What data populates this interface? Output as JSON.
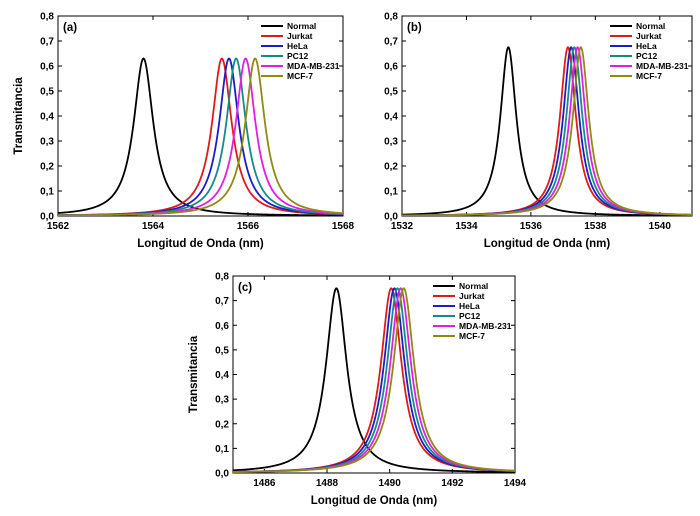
{
  "colors": {
    "Normal": "#000000",
    "Jurkat": "#e01a1a",
    "HeLa": "#1c1cc8",
    "PC12": "#168a8a",
    "MDA-MB-231": "#e21ee2",
    "MCF-7": "#8f8a12"
  },
  "chart_data": [
    {
      "type": "line",
      "panel_label": "(a)",
      "xlabel": "Longitud de Onda (nm)",
      "ylabel": "Transmitancia",
      "xlim": [
        1562,
        1568
      ],
      "ylim": [
        0,
        0.8
      ],
      "xticks": [
        "1562",
        "1564",
        "1566",
        "1568"
      ],
      "yticks": [
        "0,0",
        "0,1",
        "0,2",
        "0,3",
        "0,4",
        "0,5",
        "0,6",
        "0,7",
        "0,8"
      ],
      "legend_position": "top-right",
      "grid": false,
      "series": [
        {
          "name": "Normal",
          "x0": 1563.8,
          "peak": 0.63,
          "fwhm": 0.5
        },
        {
          "name": "Jurkat",
          "x0": 1565.45,
          "peak": 0.63,
          "fwhm": 0.5
        },
        {
          "name": "HeLa",
          "x0": 1565.6,
          "peak": 0.63,
          "fwhm": 0.5
        },
        {
          "name": "PC12",
          "x0": 1565.75,
          "peak": 0.63,
          "fwhm": 0.5
        },
        {
          "name": "MDA-MB-231",
          "x0": 1565.95,
          "peak": 0.63,
          "fwhm": 0.5
        },
        {
          "name": "MCF-7",
          "x0": 1566.15,
          "peak": 0.63,
          "fwhm": 0.5
        }
      ]
    },
    {
      "type": "line",
      "panel_label": "(b)",
      "xlabel": "Longitud de Onda  (nm)",
      "ylabel": "",
      "xlim": [
        1532,
        1541
      ],
      "ylim": [
        0,
        0.8
      ],
      "xticks": [
        "1532",
        "1534",
        "1536",
        "1538",
        "1540"
      ],
      "yticks": [
        "0,0",
        "0,1",
        "0,2",
        "0,3",
        "0,4",
        "0,5",
        "0,6",
        "0,7",
        "0,8"
      ],
      "legend_position": "top-right",
      "grid": false,
      "series": [
        {
          "name": "Normal",
          "x0": 1535.3,
          "peak": 0.675,
          "fwhm": 0.6
        },
        {
          "name": "Jurkat",
          "x0": 1537.15,
          "peak": 0.675,
          "fwhm": 0.6
        },
        {
          "name": "HeLa",
          "x0": 1537.25,
          "peak": 0.675,
          "fwhm": 0.6
        },
        {
          "name": "PC12",
          "x0": 1537.35,
          "peak": 0.675,
          "fwhm": 0.6
        },
        {
          "name": "MDA-MB-231",
          "x0": 1537.45,
          "peak": 0.675,
          "fwhm": 0.6
        },
        {
          "name": "MCF-7",
          "x0": 1537.55,
          "peak": 0.675,
          "fwhm": 0.6
        }
      ]
    },
    {
      "type": "line",
      "panel_label": "(c)",
      "xlabel": "Longitud de Onda (nm)",
      "ylabel": "Transmitancia",
      "xlim": [
        1485,
        1494
      ],
      "ylim": [
        0,
        0.8
      ],
      "xticks": [
        "1486",
        "1488",
        "1490",
        "1492",
        "1494"
      ],
      "yticks": [
        "0,0",
        "0,1",
        "0,2",
        "0,3",
        "0,4",
        "0,5",
        "0,6",
        "0,7",
        "0,8"
      ],
      "legend_position": "top-right",
      "grid": false,
      "series": [
        {
          "name": "Normal",
          "x0": 1488.3,
          "peak": 0.75,
          "fwhm": 0.8
        },
        {
          "name": "Jurkat",
          "x0": 1490.05,
          "peak": 0.75,
          "fwhm": 0.8
        },
        {
          "name": "HeLa",
          "x0": 1490.15,
          "peak": 0.75,
          "fwhm": 0.8
        },
        {
          "name": "PC12",
          "x0": 1490.25,
          "peak": 0.75,
          "fwhm": 0.8
        },
        {
          "name": "MDA-MB-231",
          "x0": 1490.35,
          "peak": 0.75,
          "fwhm": 0.8
        },
        {
          "name": "MCF-7",
          "x0": 1490.45,
          "peak": 0.75,
          "fwhm": 0.8
        }
      ]
    }
  ]
}
